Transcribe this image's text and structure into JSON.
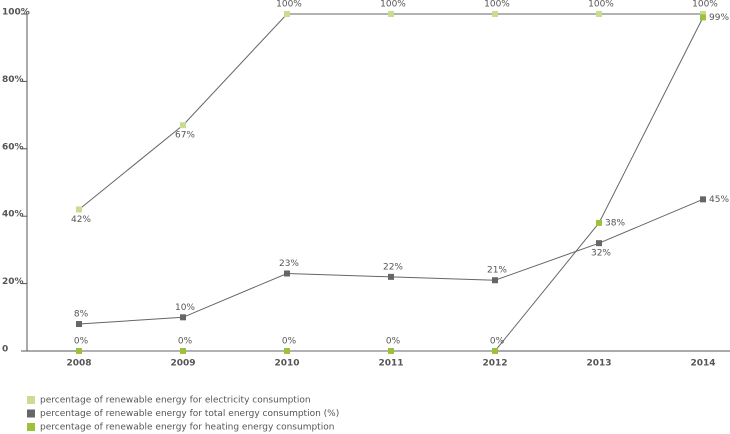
{
  "chart_data": {
    "type": "line",
    "categories": [
      "2008",
      "2009",
      "2010",
      "2011",
      "2012",
      "2013",
      "2014"
    ],
    "series": [
      {
        "name": "percentage of renewable energy for electricity consumption",
        "color": "#c8dd92",
        "values": [
          42,
          67,
          100,
          100,
          100,
          100,
          100
        ],
        "value_labels": [
          "42%",
          "67%",
          "100%",
          "100%",
          "100%",
          "100%",
          "100%"
        ]
      },
      {
        "name": "percentage of renewable energy for total energy consumption (%)",
        "color": "#666666",
        "values": [
          8,
          10,
          23,
          22,
          21,
          32,
          45
        ],
        "value_labels": [
          "8%",
          "10%",
          "23%",
          "22%",
          "21%",
          "32%",
          "45%"
        ]
      },
      {
        "name": "percentage of renewable energy for heating energy consumption",
        "color": "#9cc23c",
        "values": [
          0,
          0,
          0,
          0,
          0,
          38,
          99
        ],
        "value_labels": [
          "0%",
          "0%",
          "0%",
          "0%",
          "0%",
          "38%",
          "99%"
        ]
      }
    ],
    "ylim": [
      0,
      100
    ],
    "yticks": [
      0,
      {
        "value": 20,
        "label": "20%"
      },
      {
        "value": 40,
        "label": "40%"
      },
      {
        "value": 60,
        "label": "60%"
      },
      {
        "value": 80,
        "label": "80%"
      },
      {
        "value": 100,
        "label": "100%"
      }
    ],
    "grid": false
  }
}
